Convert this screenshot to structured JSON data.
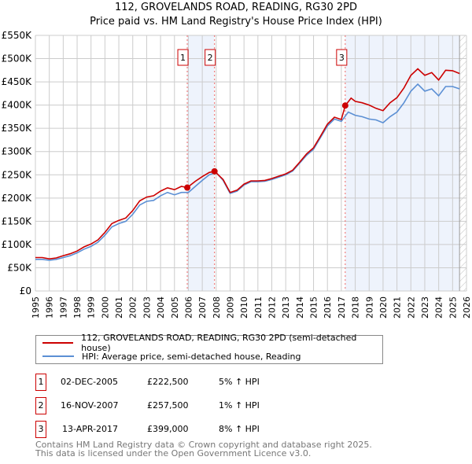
{
  "chart_data": {
    "type": "line",
    "title": "112, GROVELANDS ROAD, READING, RG30 2PD",
    "subtitle": "Price paid vs. HM Land Registry's House Price Index (HPI)",
    "xlim": [
      1995,
      2026
    ],
    "ylim": [
      0,
      550000
    ],
    "x_ticks": [
      "1995",
      "1996",
      "1997",
      "1998",
      "1999",
      "2000",
      "2001",
      "2002",
      "2003",
      "2004",
      "2005",
      "2006",
      "2007",
      "2008",
      "2009",
      "2010",
      "2011",
      "2012",
      "2013",
      "2014",
      "2015",
      "2016",
      "2017",
      "2018",
      "2019",
      "2020",
      "2021",
      "2022",
      "2023",
      "2024",
      "2025",
      "2026"
    ],
    "y_ticks": [
      {
        "v": 0,
        "label": "£0"
      },
      {
        "v": 50000,
        "label": "£50K"
      },
      {
        "v": 100000,
        "label": "£100K"
      },
      {
        "v": 150000,
        "label": "£150K"
      },
      {
        "v": 200000,
        "label": "£200K"
      },
      {
        "v": 250000,
        "label": "£250K"
      },
      {
        "v": 300000,
        "label": "£300K"
      },
      {
        "v": 350000,
        "label": "£350K"
      },
      {
        "v": 400000,
        "label": "£400K"
      },
      {
        "v": 450000,
        "label": "£450K"
      },
      {
        "v": 500000,
        "label": "£500K"
      },
      {
        "v": 550000,
        "label": "£550K"
      }
    ],
    "grid": true,
    "shaded_ranges": [
      [
        2005.92,
        2007.88
      ],
      [
        2017.28,
        2025.5
      ]
    ],
    "hatched_from": 2025.5,
    "series": [
      {
        "name": "112, GROVELANDS ROAD, READING, RG30 2PD (semi-detached house)",
        "color": "#cc0000",
        "x": [
          1995,
          1995.5,
          1996,
          1996.5,
          1997,
          1997.5,
          1998,
          1998.5,
          1999,
          1999.5,
          2000,
          2000.5,
          2001,
          2001.5,
          2002,
          2002.5,
          2003,
          2003.5,
          2004,
          2004.5,
          2005,
          2005.5,
          2005.92,
          2006.5,
          2007,
          2007.5,
          2007.88,
          2008.5,
          2009,
          2009.5,
          2010,
          2010.5,
          2011,
          2011.5,
          2012,
          2012.5,
          2013,
          2013.5,
          2014,
          2014.5,
          2015,
          2015.5,
          2016,
          2016.5,
          2017,
          2017.28,
          2017.7,
          2018,
          2018.5,
          2019,
          2019.5,
          2020,
          2020.5,
          2021,
          2021.5,
          2022,
          2022.5,
          2023,
          2023.5,
          2024,
          2024.5,
          2025,
          2025.5
        ],
        "y": [
          72000,
          72000,
          69000,
          71000,
          76000,
          80000,
          86000,
          95000,
          101000,
          110000,
          126000,
          145000,
          152000,
          157000,
          173000,
          194000,
          202000,
          205000,
          215000,
          222000,
          218000,
          225000,
          222500,
          236000,
          246000,
          255000,
          257500,
          240000,
          212000,
          217000,
          230000,
          237000,
          237000,
          238000,
          242000,
          247000,
          252000,
          260000,
          277000,
          295000,
          308000,
          333000,
          359000,
          374000,
          369000,
          399000,
          415000,
          408000,
          405000,
          400000,
          393000,
          388000,
          405000,
          416000,
          437000,
          464000,
          478000,
          464000,
          470000,
          454000,
          475000,
          474000,
          468000
        ]
      },
      {
        "name": "HPI: Average price, semi-detached house, Reading",
        "color": "#5b8fd4",
        "x": [
          1995,
          1995.5,
          1996,
          1996.5,
          1997,
          1997.5,
          1998,
          1998.5,
          1999,
          1999.5,
          2000,
          2000.5,
          2001,
          2001.5,
          2002,
          2002.5,
          2003,
          2003.5,
          2004,
          2004.5,
          2005,
          2005.5,
          2006,
          2006.5,
          2007,
          2007.5,
          2008,
          2008.5,
          2009,
          2009.5,
          2010,
          2010.5,
          2011,
          2011.5,
          2012,
          2012.5,
          2013,
          2013.5,
          2014,
          2014.5,
          2015,
          2015.5,
          2016,
          2016.5,
          2017,
          2017.5,
          2018,
          2018.5,
          2019,
          2019.5,
          2020,
          2020.5,
          2021,
          2021.5,
          2022,
          2022.5,
          2023,
          2023.5,
          2024,
          2024.5,
          2025,
          2025.5
        ],
        "y": [
          68000,
          68000,
          66000,
          68000,
          72000,
          76000,
          82000,
          90000,
          96000,
          105000,
          120000,
          138000,
          145000,
          150000,
          165000,
          185000,
          193000,
          195000,
          205000,
          212000,
          207000,
          212000,
          212000,
          225000,
          238000,
          250000,
          255000,
          238000,
          210000,
          215000,
          228000,
          235000,
          235000,
          236000,
          240000,
          245000,
          250000,
          258000,
          275000,
          292000,
          305000,
          330000,
          355000,
          370000,
          365000,
          385000,
          378000,
          375000,
          370000,
          368000,
          362000,
          375000,
          385000,
          405000,
          430000,
          445000,
          430000,
          435000,
          420000,
          440000,
          440000,
          435000
        ]
      }
    ],
    "sales": [
      {
        "n": "1",
        "x": 2005.92,
        "date": "02-DEC-2005",
        "price": "£222,500",
        "price_value": 222500,
        "hpi": "5% ↑ HPI"
      },
      {
        "n": "2",
        "x": 2007.88,
        "date": "16-NOV-2007",
        "price": "£257,500",
        "price_value": 257500,
        "hpi": "1% ↑ HPI"
      },
      {
        "n": "3",
        "x": 2017.28,
        "date": "13-APR-2017",
        "price": "£399,000",
        "price_value": 399000,
        "hpi": "8% ↑ HPI"
      }
    ]
  },
  "legend": {
    "property": "112, GROVELANDS ROAD, READING, RG30 2PD (semi-detached house)",
    "hpi": "HPI: Average price, semi-detached house, Reading"
  },
  "footer": {
    "line1": "Contains HM Land Registry data © Crown copyright and database right 2025.",
    "line2": "This data is licensed under the Open Government Licence v3.0."
  }
}
